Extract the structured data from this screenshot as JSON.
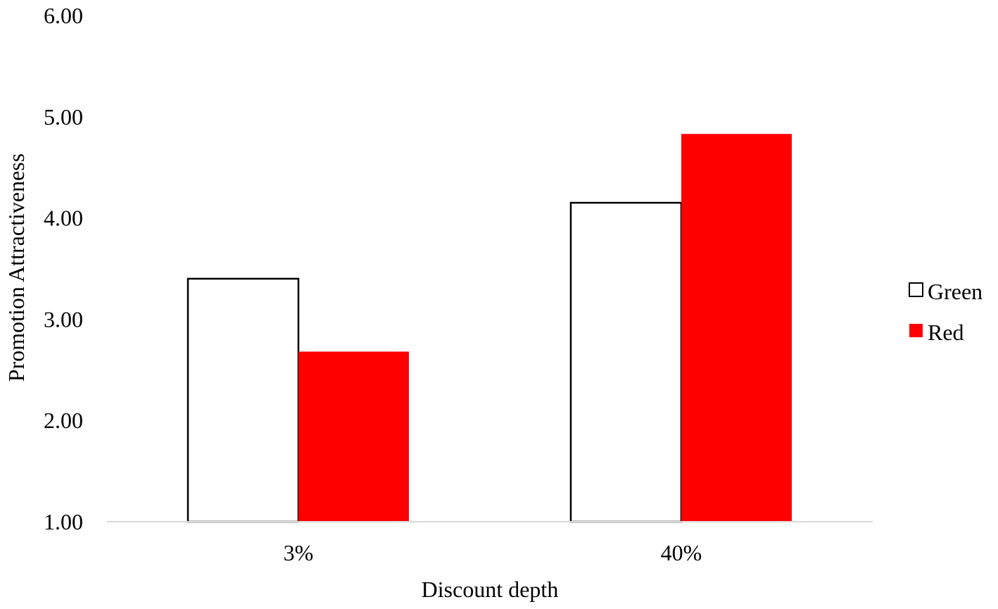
{
  "chart_data": {
    "type": "bar",
    "categories": [
      "3%",
      "40%"
    ],
    "series": [
      {
        "name": "Green",
        "values": [
          3.4,
          4.15
        ],
        "fill": "#ffffff",
        "stroke": "#000000"
      },
      {
        "name": "Red",
        "values": [
          2.68,
          4.83
        ],
        "fill": "#ff0000",
        "stroke": "#ff0000"
      }
    ],
    "title": "",
    "xlabel": "Discount depth",
    "ylabel": "Promotion Attractiveness",
    "ylim": [
      1.0,
      6.0
    ],
    "yticks": [
      "1.00",
      "2.00",
      "3.00",
      "4.00",
      "5.00",
      "6.00"
    ],
    "grid": false,
    "legend": "right"
  }
}
